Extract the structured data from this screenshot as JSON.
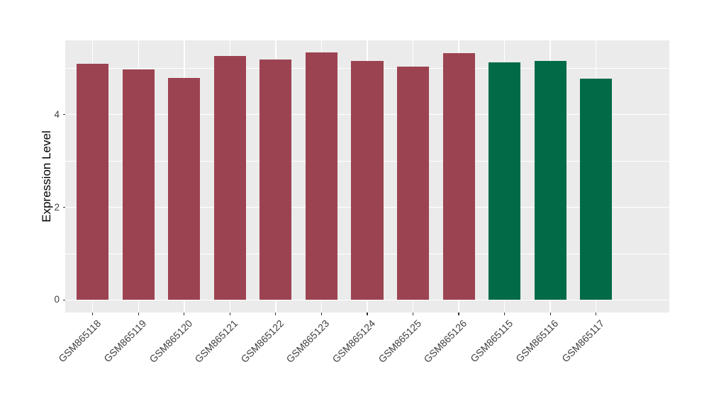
{
  "chart_data": {
    "type": "bar",
    "ylabel": "Expression Level",
    "categories": [
      "GSM865118",
      "GSM865119",
      "GSM865120",
      "GSM865121",
      "GSM865122",
      "GSM865123",
      "GSM865124",
      "GSM865125",
      "GSM865126",
      "GSM865115",
      "GSM865116",
      "GSM865117"
    ],
    "values": [
      5.1,
      4.98,
      4.79,
      5.26,
      5.18,
      5.34,
      5.15,
      5.04,
      5.32,
      5.12,
      5.16,
      4.77
    ],
    "bar_colors": [
      "#9c4351",
      "#9c4351",
      "#9c4351",
      "#9c4351",
      "#9c4351",
      "#9c4351",
      "#9c4351",
      "#9c4351",
      "#9c4351",
      "#006b46",
      "#006b46",
      "#006b46"
    ],
    "yticks": [
      0,
      2,
      4
    ],
    "yminor": [
      1,
      3,
      5
    ],
    "ylim": [
      -0.27,
      5.6
    ],
    "legend": "none",
    "grid": true,
    "colors": {
      "panel_bg": "#ebebeb",
      "grid": "#ffffff",
      "tick_text": "#404040",
      "axis_title": "#000000",
      "tick_mark": "#333333",
      "figure_bg": "#ffffff"
    }
  }
}
